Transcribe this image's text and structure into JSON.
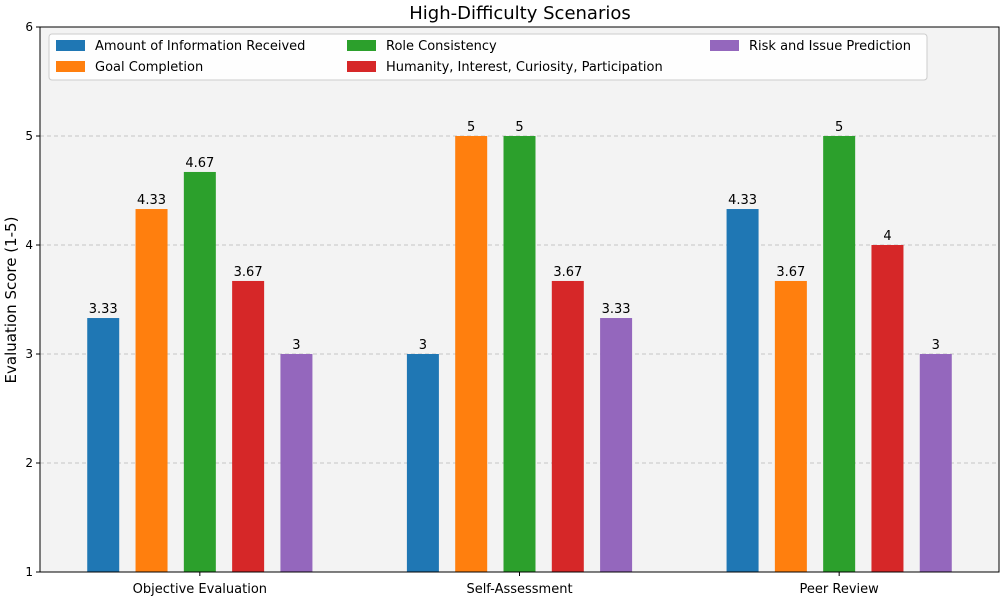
{
  "chart_data": {
    "type": "bar",
    "title": "High-Difficulty Scenarios",
    "xlabel": "",
    "ylabel": "Evaluation Score (1-5)",
    "ylim": [
      1,
      6
    ],
    "yticks": [
      1,
      2,
      3,
      4,
      5,
      6
    ],
    "grid": "y-dashed",
    "legend_position": "top",
    "background": "#f3f3f3",
    "categories": [
      "Objective Evaluation",
      "Self-Assessment",
      "Peer Review"
    ],
    "series": [
      {
        "name": "Amount of Information Received",
        "color": "#1f77b4",
        "values": [
          3.33,
          3,
          4.33
        ],
        "labels": [
          "3.33",
          "3",
          "4.33"
        ]
      },
      {
        "name": "Goal Completion",
        "color": "#ff7f0e",
        "values": [
          4.33,
          5,
          3.67
        ],
        "labels": [
          "4.33",
          "5",
          "3.67"
        ]
      },
      {
        "name": "Role Consistency",
        "color": "#2ca02c",
        "values": [
          4.67,
          5,
          5
        ],
        "labels": [
          "4.67",
          "5",
          "5"
        ]
      },
      {
        "name": "Humanity, Interest, Curiosity, Participation",
        "color": "#d62728",
        "values": [
          3.67,
          3.67,
          4
        ],
        "labels": [
          "3.67",
          "3.67",
          "4"
        ]
      },
      {
        "name": "Risk and Issue Prediction",
        "color": "#9467bd",
        "values": [
          3,
          3.33,
          3
        ],
        "labels": [
          "3",
          "3.33",
          "3"
        ]
      }
    ]
  }
}
